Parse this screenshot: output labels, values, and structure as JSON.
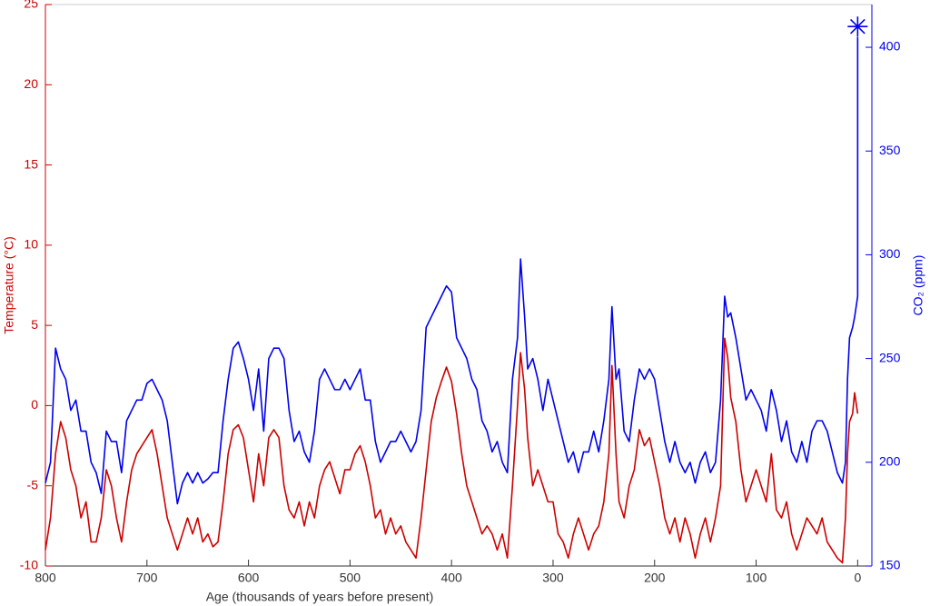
{
  "chart_data": {
    "type": "line",
    "xlabel": "Age (thousands of years before present)",
    "ylabel": "Temperature (°C)",
    "y2label": "CO₂ (ppm)",
    "xlim": [
      800,
      -14
    ],
    "xticks": [
      800,
      700,
      600,
      500,
      400,
      300,
      200,
      100,
      0
    ],
    "ylim": [
      -10,
      25
    ],
    "yticks": [
      -10,
      -5,
      0,
      5,
      10,
      15,
      20,
      25
    ],
    "ycolor": "#cc0000",
    "y2lim": [
      150,
      420.6
    ],
    "y2ticks": [
      150,
      200,
      250,
      300,
      350,
      400
    ],
    "y2color": "#0000ee",
    "series": [
      {
        "color": "#cc0000",
        "x": [
          800,
          795,
          790,
          785,
          780,
          775,
          770,
          765,
          760,
          755,
          750,
          745,
          740,
          735,
          730,
          725,
          720,
          715,
          710,
          705,
          700,
          695,
          690,
          685,
          680,
          675,
          670,
          665,
          660,
          655,
          650,
          645,
          640,
          635,
          630,
          625,
          620,
          615,
          610,
          605,
          600,
          595,
          590,
          585,
          580,
          575,
          570,
          565,
          560,
          555,
          550,
          545,
          540,
          535,
          530,
          525,
          520,
          515,
          510,
          505,
          500,
          495,
          490,
          485,
          480,
          475,
          470,
          465,
          460,
          455,
          450,
          445,
          440,
          435,
          430,
          425,
          420,
          415,
          410,
          405,
          400,
          395,
          390,
          385,
          380,
          375,
          370,
          365,
          360,
          355,
          350,
          345,
          340,
          335,
          332,
          328,
          325,
          320,
          315,
          310,
          305,
          300,
          295,
          290,
          285,
          280,
          275,
          270,
          265,
          260,
          255,
          250,
          245,
          242,
          238,
          235,
          230,
          225,
          220,
          215,
          210,
          205,
          200,
          195,
          190,
          185,
          180,
          175,
          170,
          165,
          160,
          155,
          150,
          145,
          140,
          135,
          131,
          128,
          125,
          120,
          115,
          110,
          105,
          100,
          95,
          90,
          85,
          80,
          75,
          70,
          65,
          60,
          55,
          50,
          45,
          40,
          35,
          30,
          25,
          20,
          15,
          12,
          10,
          8,
          5,
          3,
          0
        ],
        "values": [
          -9,
          -7,
          -3,
          -1,
          -2,
          -4,
          -5,
          -7,
          -6,
          -8.5,
          -8.5,
          -7,
          -4,
          -5,
          -7,
          -8.5,
          -6,
          -4,
          -3,
          -2.5,
          -2,
          -1.5,
          -3,
          -5,
          -7,
          -8,
          -9,
          -8,
          -7,
          -8,
          -7,
          -8.5,
          -8,
          -8.8,
          -8.5,
          -6,
          -3,
          -1.5,
          -1.2,
          -2,
          -4,
          -6,
          -3,
          -5,
          -2,
          -1.5,
          -2,
          -5,
          -6.5,
          -7,
          -6,
          -7.5,
          -6,
          -7,
          -5,
          -4,
          -3.5,
          -4.5,
          -5.5,
          -4,
          -4,
          -3,
          -2.5,
          -3.5,
          -5,
          -7,
          -6.5,
          -8,
          -7,
          -8,
          -7.5,
          -8.5,
          -9,
          -9.5,
          -7,
          -4,
          -1,
          0.5,
          1.5,
          2.4,
          1.5,
          -0.5,
          -3,
          -5,
          -6,
          -7,
          -8,
          -7.5,
          -8,
          -9,
          -8,
          -9.5,
          -5,
          0,
          3.3,
          1,
          -2,
          -5,
          -4,
          -5,
          -6,
          -6,
          -8,
          -8.5,
          -9.5,
          -8,
          -7,
          -8,
          -9,
          -8,
          -7.5,
          -6,
          -3,
          2.5,
          -3,
          -6,
          -7,
          -5,
          -4,
          -1.5,
          -2.5,
          -2,
          -3.5,
          -5,
          -7,
          -8,
          -7,
          -8.5,
          -7,
          -8,
          -9.5,
          -8,
          -7,
          -8.5,
          -7,
          -5,
          4.2,
          3,
          0.5,
          -1,
          -4,
          -6,
          -5,
          -4,
          -5,
          -6,
          -3,
          -6.5,
          -7,
          -6,
          -8,
          -9,
          -8,
          -7,
          -7.5,
          -8,
          -7,
          -8.5,
          -9,
          -9.5,
          -9.8,
          -7,
          -3,
          -1,
          -0.5,
          0.8,
          -0.5
        ]
      },
      {
        "color": "#0000ee",
        "axis": "y2",
        "x": [
          800,
          795,
          790,
          785,
          780,
          775,
          770,
          765,
          760,
          755,
          750,
          745,
          740,
          735,
          730,
          725,
          720,
          715,
          710,
          705,
          700,
          695,
          690,
          685,
          680,
          675,
          670,
          665,
          660,
          655,
          650,
          645,
          640,
          635,
          630,
          625,
          620,
          615,
          610,
          605,
          600,
          595,
          590,
          585,
          580,
          575,
          570,
          565,
          560,
          555,
          550,
          545,
          540,
          535,
          530,
          525,
          520,
          515,
          510,
          505,
          500,
          495,
          490,
          485,
          480,
          475,
          470,
          465,
          460,
          455,
          450,
          445,
          440,
          435,
          430,
          425,
          420,
          415,
          410,
          405,
          400,
          395,
          390,
          385,
          380,
          375,
          370,
          365,
          360,
          355,
          350,
          345,
          340,
          335,
          332,
          328,
          325,
          320,
          315,
          310,
          305,
          300,
          295,
          290,
          285,
          280,
          275,
          270,
          265,
          260,
          255,
          250,
          245,
          242,
          238,
          235,
          230,
          225,
          220,
          215,
          210,
          205,
          200,
          195,
          190,
          185,
          180,
          175,
          170,
          165,
          160,
          155,
          150,
          145,
          140,
          135,
          131,
          128,
          125,
          120,
          115,
          110,
          105,
          100,
          95,
          90,
          85,
          80,
          75,
          70,
          65,
          60,
          55,
          50,
          45,
          40,
          35,
          30,
          25,
          20,
          15,
          12,
          10,
          8,
          5,
          3,
          0,
          0
        ],
        "values": [
          190,
          200,
          255,
          245,
          240,
          225,
          230,
          215,
          215,
          200,
          195,
          185,
          215,
          210,
          210,
          195,
          220,
          225,
          230,
          230,
          238,
          240,
          235,
          230,
          220,
          200,
          180,
          190,
          195,
          190,
          195,
          190,
          192,
          195,
          195,
          220,
          240,
          255,
          258,
          250,
          240,
          225,
          245,
          215,
          250,
          255,
          255,
          250,
          225,
          210,
          215,
          205,
          200,
          215,
          240,
          245,
          240,
          235,
          235,
          240,
          235,
          240,
          245,
          230,
          230,
          210,
          200,
          205,
          210,
          210,
          215,
          210,
          205,
          210,
          225,
          265,
          270,
          275,
          280,
          285,
          282,
          260,
          255,
          250,
          240,
          235,
          220,
          215,
          205,
          210,
          200,
          195,
          240,
          260,
          298,
          270,
          245,
          250,
          240,
          225,
          240,
          230,
          220,
          210,
          200,
          205,
          195,
          205,
          205,
          215,
          205,
          220,
          240,
          275,
          240,
          245,
          215,
          210,
          230,
          245,
          240,
          245,
          240,
          225,
          210,
          200,
          210,
          200,
          195,
          200,
          190,
          200,
          205,
          195,
          200,
          230,
          280,
          270,
          272,
          260,
          245,
          230,
          235,
          230,
          225,
          215,
          235,
          225,
          210,
          220,
          205,
          200,
          210,
          200,
          215,
          220,
          220,
          215,
          205,
          195,
          190,
          200,
          240,
          260,
          265,
          270,
          280,
          405
        ]
      }
    ],
    "points": [
      {
        "x": 0,
        "y": 410,
        "axis": "y2",
        "color": "#0000ee"
      }
    ]
  }
}
